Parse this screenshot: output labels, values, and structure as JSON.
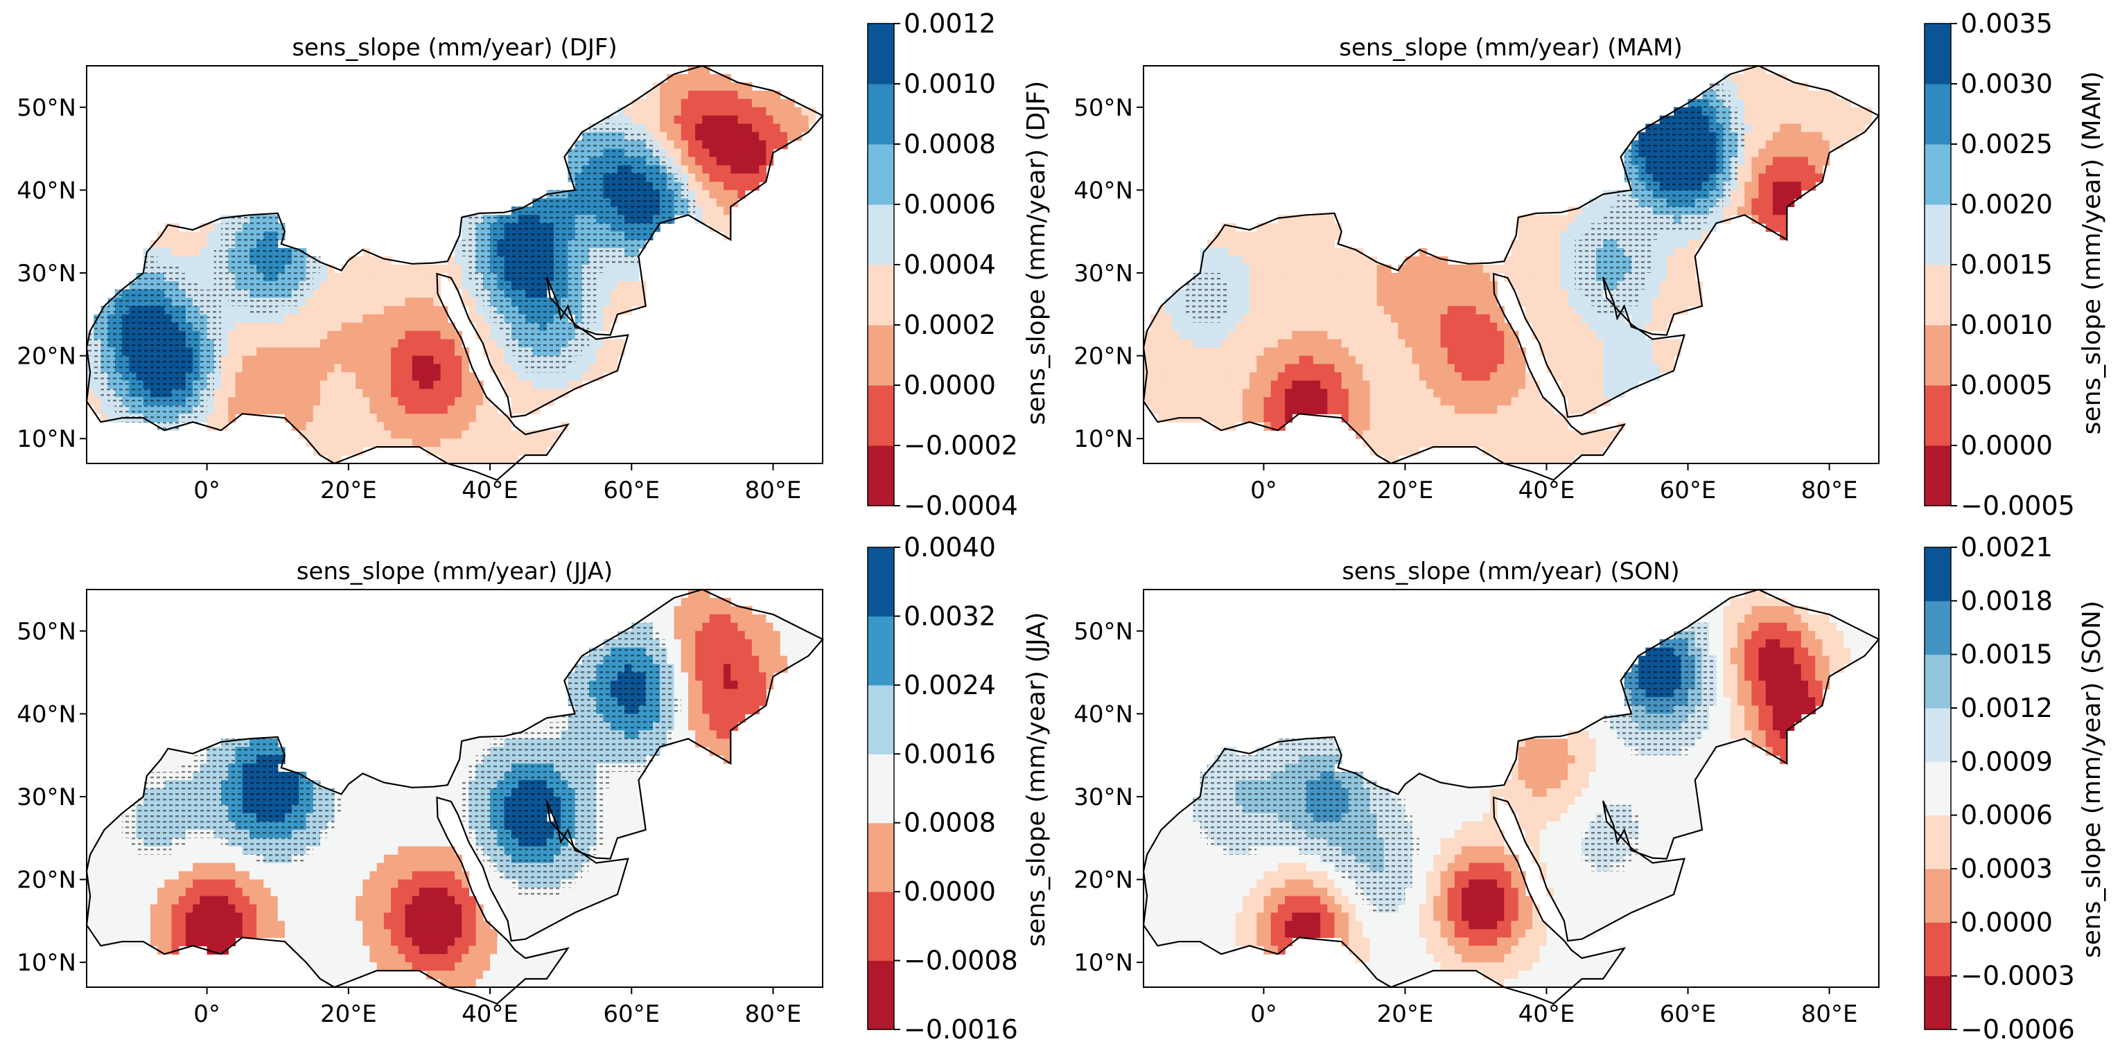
{
  "chart_data": [
    {
      "type": "heatmap",
      "title": "sens_slope (mm/year) (DJF)",
      "x_ticks": [
        "0°",
        "20°E",
        "40°E",
        "60°E",
        "80°E"
      ],
      "x_tick_values": [
        0,
        20,
        40,
        60,
        80
      ],
      "y_ticks": [
        "10°N",
        "20°N",
        "30°N",
        "40°N",
        "50°N"
      ],
      "y_tick_values": [
        10,
        20,
        30,
        40,
        50
      ],
      "xlim": [
        -17,
        87
      ],
      "ylim": [
        7,
        55
      ],
      "colorbar": {
        "label": "sens_slope (mm/year) (DJF)",
        "ticks": [
          "0.0012",
          "0.0010",
          "0.0008",
          "0.0006",
          "0.0004",
          "0.0002",
          "0.0000",
          "−0.0002",
          "−0.0004"
        ],
        "levels": [
          -0.0004,
          -0.0002,
          0.0,
          0.0002,
          0.0004,
          0.0006,
          0.0008,
          0.001,
          0.0012
        ],
        "colors": [
          "#b2182b",
          "#e6544a",
          "#f4a582",
          "#fddbc7",
          "#d1e5f0",
          "#74bce0",
          "#2e8bc0",
          "#0b5596"
        ]
      },
      "blobs": [
        {
          "lon": 70,
          "lat": 47,
          "value": -0.0002
        },
        {
          "lon": 78,
          "lat": 44,
          "value": -0.00015
        },
        {
          "lon": 62,
          "lat": 39,
          "value": 0.0011
        },
        {
          "lon": 54,
          "lat": 42,
          "value": 0.0007
        },
        {
          "lon": 45,
          "lat": 33,
          "value": 0.0012
        },
        {
          "lon": 48,
          "lat": 24,
          "value": 0.0007
        },
        {
          "lon": 9,
          "lat": 32,
          "value": 0.0009
        },
        {
          "lon": -6,
          "lat": 19,
          "value": 0.0012
        },
        {
          "lon": -10,
          "lat": 25,
          "value": 0.0008
        },
        {
          "lon": 31,
          "lat": 18,
          "value": -0.00025
        },
        {
          "lon": 18,
          "lat": 23,
          "value": 0.0002
        },
        {
          "lon": 8,
          "lat": 15,
          "value": 0.0
        }
      ]
    },
    {
      "type": "heatmap",
      "title": "sens_slope (mm/year) (MAM)",
      "x_ticks": [
        "0°",
        "20°E",
        "40°E",
        "60°E",
        "80°E"
      ],
      "x_tick_values": [
        0,
        20,
        40,
        60,
        80
      ],
      "y_ticks": [
        "10°N",
        "20°N",
        "30°N",
        "40°N",
        "50°N"
      ],
      "y_tick_values": [
        10,
        20,
        30,
        40,
        50
      ],
      "xlim": [
        -17,
        87
      ],
      "ylim": [
        7,
        55
      ],
      "colorbar": {
        "label": "sens_slope (mm/year) (MAM)",
        "ticks": [
          "0.0035",
          "0.0030",
          "0.0025",
          "0.0020",
          "0.0015",
          "0.0010",
          "0.0005",
          "0.0000",
          "−0.0005"
        ],
        "levels": [
          -0.0005,
          0.0,
          0.0005,
          0.001,
          0.0015,
          0.002,
          0.0025,
          0.003,
          0.0035
        ],
        "colors": [
          "#b2182b",
          "#e6544a",
          "#f4a582",
          "#fddbc7",
          "#d1e5f0",
          "#74bce0",
          "#2e8bc0",
          "#0b5596"
        ]
      },
      "blobs": [
        {
          "lon": 60,
          "lat": 44,
          "value": 0.0036
        },
        {
          "lon": 56,
          "lat": 48,
          "value": 0.0026
        },
        {
          "lon": 49,
          "lat": 31,
          "value": 0.0021
        },
        {
          "lon": 6,
          "lat": 14,
          "value": -0.0003
        },
        {
          "lon": 30,
          "lat": 21,
          "value": 0.0002
        },
        {
          "lon": 22,
          "lat": 30,
          "value": 0.0006
        },
        {
          "lon": 74,
          "lat": 39,
          "value": -0.0002
        },
        {
          "lon": -8,
          "lat": 27,
          "value": 0.0018
        },
        {
          "lon": 5,
          "lat": 32,
          "value": 0.0014
        },
        {
          "lon": 52,
          "lat": 17,
          "value": 0.0016
        }
      ]
    },
    {
      "type": "heatmap",
      "title": "sens_slope (mm/year) (JJA)",
      "x_ticks": [
        "0°",
        "20°E",
        "40°E",
        "60°E",
        "80°E"
      ],
      "x_tick_values": [
        0,
        20,
        40,
        60,
        80
      ],
      "y_ticks": [
        "10°N",
        "20°N",
        "30°N",
        "40°N",
        "50°N"
      ],
      "y_tick_values": [
        10,
        20,
        30,
        40,
        50
      ],
      "xlim": [
        -17,
        87
      ],
      "ylim": [
        7,
        55
      ],
      "colorbar": {
        "label": "sens_slope (mm/year) (JJA)",
        "ticks": [
          "0.0040",
          "0.0032",
          "0.0024",
          "0.0016",
          "0.0008",
          "0.0000",
          "−0.0008",
          "−0.0016"
        ],
        "levels": [
          -0.0016,
          -0.0008,
          0.0,
          0.0008,
          0.0016,
          0.0024,
          0.0032,
          0.004
        ],
        "colors": [
          "#b2182b",
          "#e6544a",
          "#f4a582",
          "#f4f6f6",
          "#aed5e8",
          "#3a98c8",
          "#0b5596"
        ]
      },
      "blobs": [
        {
          "lon": 9,
          "lat": 31,
          "value": 0.0042
        },
        {
          "lon": 46,
          "lat": 28,
          "value": 0.004
        },
        {
          "lon": 60,
          "lat": 43,
          "value": 0.0036
        },
        {
          "lon": 1,
          "lat": 14,
          "value": -0.0018
        },
        {
          "lon": 32,
          "lat": 15,
          "value": -0.0017
        },
        {
          "lon": 21,
          "lat": 19,
          "value": 0.001
        },
        {
          "lon": -6,
          "lat": 27,
          "value": 0.0018
        },
        {
          "lon": 72,
          "lat": 48,
          "value": -0.0004
        },
        {
          "lon": 75,
          "lat": 40,
          "value": -0.0003
        }
      ]
    },
    {
      "type": "heatmap",
      "title": "sens_slope (mm/year) (SON)",
      "x_ticks": [
        "0°",
        "20°E",
        "40°E",
        "60°E",
        "80°E"
      ],
      "x_tick_values": [
        0,
        20,
        40,
        60,
        80
      ],
      "y_ticks": [
        "10°N",
        "20°N",
        "30°N",
        "40°N",
        "50°N"
      ],
      "y_tick_values": [
        10,
        20,
        30,
        40,
        50
      ],
      "xlim": [
        -17,
        87
      ],
      "ylim": [
        7,
        55
      ],
      "colorbar": {
        "label": "sens_slope (mm/year) (SON)",
        "ticks": [
          "0.0021",
          "0.0018",
          "0.0015",
          "0.0012",
          "0.0009",
          "0.0006",
          "0.0003",
          "0.0000",
          "−0.0003",
          "−0.0006"
        ],
        "levels": [
          -0.0006,
          -0.0003,
          0.0,
          0.0003,
          0.0006,
          0.0009,
          0.0012,
          0.0015,
          0.0018,
          0.0021
        ],
        "colors": [
          "#b2182b",
          "#e6544a",
          "#f4a582",
          "#fddbc7",
          "#f4f6f6",
          "#d1e5f0",
          "#92c5de",
          "#4393c3",
          "#0b5596"
        ]
      },
      "blobs": [
        {
          "lon": 56,
          "lat": 45,
          "value": 0.0021
        },
        {
          "lon": 9,
          "lat": 30,
          "value": 0.0016
        },
        {
          "lon": -3,
          "lat": 30,
          "value": 0.0012
        },
        {
          "lon": 31,
          "lat": 17,
          "value": -0.0006
        },
        {
          "lon": 6,
          "lat": 14,
          "value": -0.0005
        },
        {
          "lon": 16,
          "lat": 21,
          "value": 0.0012
        },
        {
          "lon": 48,
          "lat": 26,
          "value": 0.001
        },
        {
          "lon": 72,
          "lat": 47,
          "value": -0.0003
        },
        {
          "lon": 76,
          "lat": 38,
          "value": -0.0004
        },
        {
          "lon": 40,
          "lat": 34,
          "value": 0.0001
        }
      ]
    }
  ]
}
